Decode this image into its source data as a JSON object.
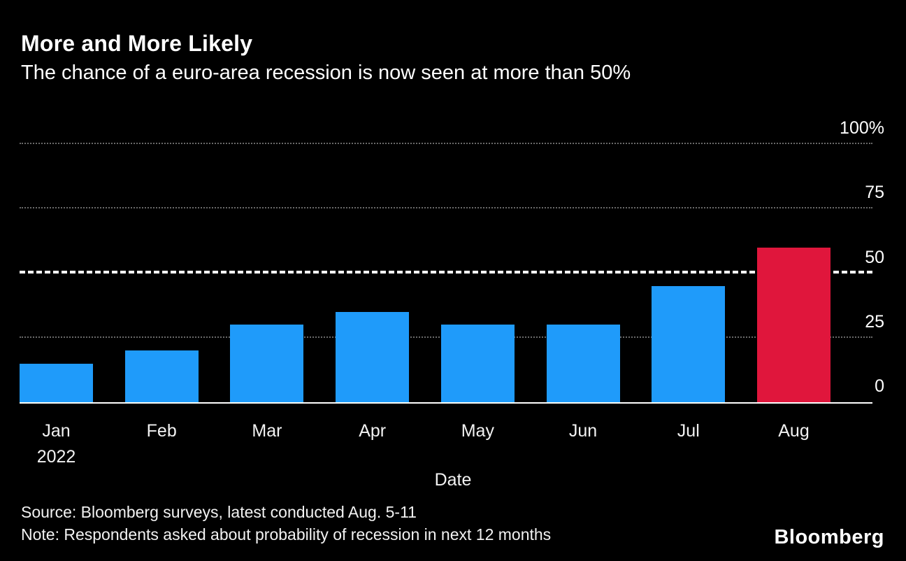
{
  "header": {
    "title": "More and More Likely",
    "subtitle": "The chance of a euro-area recession is now seen at more than 50%"
  },
  "chart_data": {
    "type": "bar",
    "title": "More and More Likely",
    "subtitle": "The chance of a euro-area recession is now seen at more than 50%",
    "xlabel": "Date",
    "ylabel": "",
    "unit": "%",
    "ylim": [
      0,
      100
    ],
    "grid": "horizontal-dotted",
    "legend": "none",
    "categories": [
      "Jan",
      "Feb",
      "Mar",
      "Apr",
      "May",
      "Jun",
      "Jul",
      "Aug"
    ],
    "x_sub_labels": [
      "2022",
      "",
      "",
      "",
      "",
      "",
      "",
      ""
    ],
    "values": [
      15,
      20,
      30,
      35,
      30,
      30,
      45,
      60
    ],
    "bar_colors": [
      "#1f9bfa",
      "#1f9bfa",
      "#1f9bfa",
      "#1f9bfa",
      "#1f9bfa",
      "#1f9bfa",
      "#1f9bfa",
      "#e0163c"
    ],
    "y_ticks": [
      {
        "value": 0,
        "label": "0",
        "emphasized": false
      },
      {
        "value": 25,
        "label": "25",
        "emphasized": false
      },
      {
        "value": 50,
        "label": "50",
        "emphasized": true
      },
      {
        "value": 75,
        "label": "75",
        "emphasized": false
      },
      {
        "value": 100,
        "label": "100%",
        "emphasized": false
      }
    ],
    "reference_line": {
      "value": 50,
      "style": "dashed",
      "color": "#ffffff"
    },
    "colors": {
      "background": "#000000",
      "bar_default": "#1f9bfa",
      "bar_highlight": "#e0163c",
      "gridline": "#6a6a6a",
      "axis_line": "#ffffff",
      "text": "#ffffff"
    }
  },
  "footer": {
    "source": "Source: Bloomberg surveys, latest conducted Aug. 5-11",
    "note": "Note: Respondents asked about probability of recession in next 12 months",
    "brand": "Bloomberg"
  }
}
